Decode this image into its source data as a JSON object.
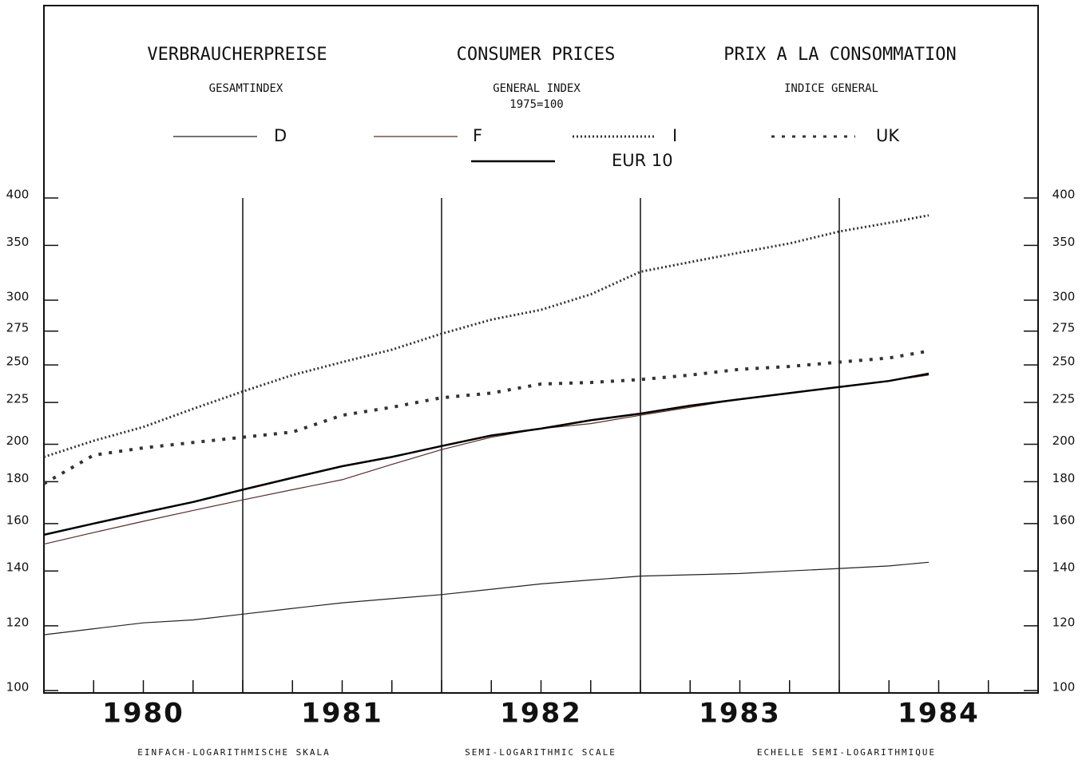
{
  "chart_data": {
    "type": "line",
    "titles": [
      "VERBRAUCHERPREISE",
      "CONSUMER PRICES",
      "PRIX A LA CONSOMMATION"
    ],
    "subtitles": [
      "GESAMTINDEX",
      "GENERAL INDEX",
      "INDICE GENERAL"
    ],
    "base_note": "1975=100",
    "footer_labels": [
      "EINFACH-LOGARITHMISCHE SKALA",
      "SEMI-LOGARITHMIC SCALE",
      "ECHELLE SEMI-LOGARITHMIQUE"
    ],
    "categories": [
      "1980",
      "1981",
      "1982",
      "1983",
      "1984"
    ],
    "x": [
      1980,
      1980.25,
      1980.5,
      1980.75,
      1981,
      1981.25,
      1981.5,
      1981.75,
      1982,
      1982.25,
      1982.5,
      1982.75,
      1983,
      1983.25,
      1983.5,
      1983.75,
      1984,
      1984.25,
      1984.45
    ],
    "xlim": [
      1980,
      1985
    ],
    "year_lines": [
      1981,
      1982,
      1983,
      1984
    ],
    "minor_xticks": [
      1980,
      1980.25,
      1980.5,
      1980.75,
      1981,
      1981.25,
      1981.5,
      1981.75,
      1982,
      1982.25,
      1982.5,
      1982.75,
      1983,
      1983.25,
      1983.5,
      1983.75,
      1984,
      1984.25,
      1984.5,
      1984.75,
      1985
    ],
    "ylim": [
      100,
      400
    ],
    "yticks": [
      100,
      120,
      140,
      160,
      180,
      200,
      225,
      250,
      275,
      300,
      350,
      400
    ],
    "log_scale": true,
    "series": [
      {
        "name": "D",
        "color": "#222222",
        "style": "solid",
        "width": 1.2,
        "values": [
          117,
          119,
          121,
          122,
          124,
          126,
          128,
          129.5,
          131,
          133,
          135,
          136.5,
          138,
          138.5,
          139,
          140,
          141,
          142,
          143.5
        ]
      },
      {
        "name": "F",
        "color": "#5a2a2a",
        "style": "solid",
        "width": 1.2,
        "values": [
          151,
          156,
          161,
          166,
          171,
          176,
          181,
          189,
          197,
          204,
          209,
          212,
          217,
          222,
          227,
          231,
          235,
          239,
          243
        ]
      },
      {
        "name": "I",
        "color": "#333333",
        "style": "dotted",
        "width": 3,
        "values": [
          193,
          202,
          210,
          221,
          232,
          243,
          252,
          261,
          273,
          284,
          292,
          305,
          325,
          334,
          343,
          352,
          364,
          373,
          381
        ]
      },
      {
        "name": "UK",
        "color": "#333333",
        "style": "crosses",
        "width": 4,
        "values": [
          179,
          194,
          198,
          201,
          204,
          207,
          217,
          222,
          228,
          231,
          237,
          238,
          240,
          243,
          247,
          249,
          252,
          255,
          260
        ]
      },
      {
        "name": "EUR 10",
        "color": "#000000",
        "style": "solid",
        "width": 2.5,
        "values": [
          155,
          160,
          165,
          170,
          176,
          182,
          188,
          193,
          199,
          205,
          209,
          214,
          218,
          223,
          227,
          231,
          235,
          239,
          244
        ]
      }
    ]
  }
}
